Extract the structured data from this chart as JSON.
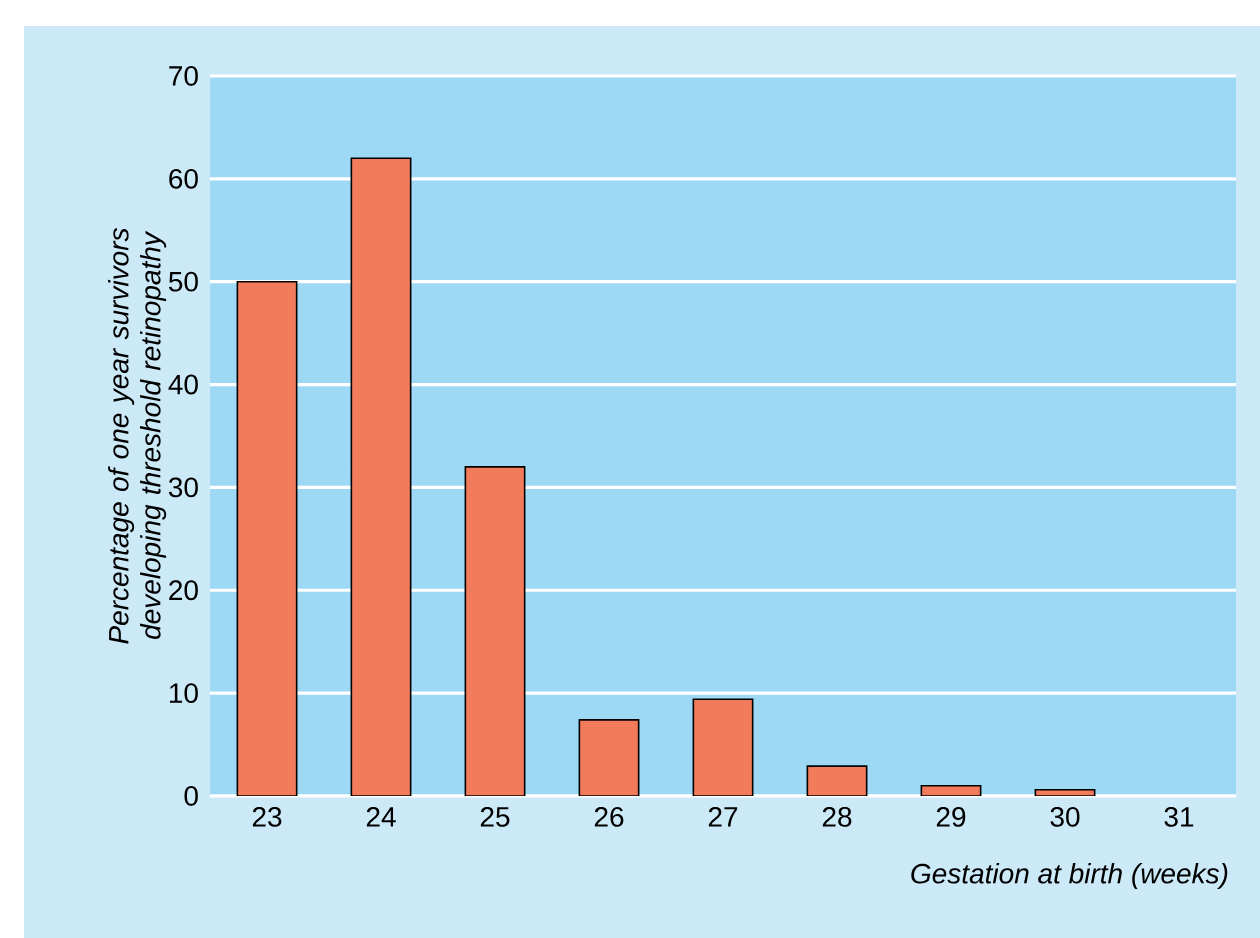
{
  "chart_data": {
    "type": "bar",
    "xlabel": "Gestation at birth (weeks)",
    "ylabel": "Percentage of one year survivors developing threshold retinopathy",
    "categories": [
      "23",
      "24",
      "25",
      "26",
      "27",
      "28",
      "29",
      "30",
      "31"
    ],
    "values": [
      50,
      62,
      32,
      7.4,
      9.4,
      2.9,
      1.0,
      0.6,
      null
    ],
    "color": "#f27b5c",
    "ylim": [
      0,
      70
    ],
    "yticks": [
      0,
      10,
      20,
      30,
      40,
      50,
      60,
      70
    ],
    "grid": "y"
  }
}
